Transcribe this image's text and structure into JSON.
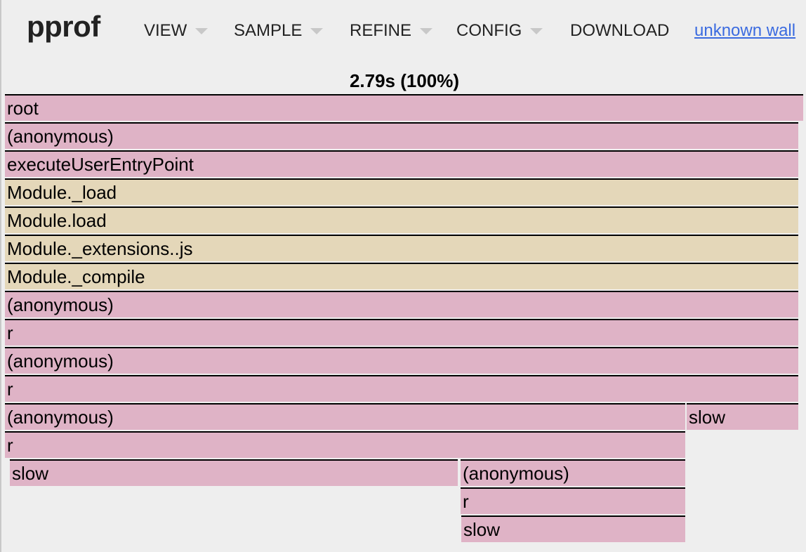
{
  "header": {
    "logo": "pprof",
    "menus": [
      {
        "label": "VIEW",
        "dropdown": true
      },
      {
        "label": "SAMPLE",
        "dropdown": true
      },
      {
        "label": "REFINE",
        "dropdown": true
      },
      {
        "label": "CONFIG",
        "dropdown": true
      },
      {
        "label": "DOWNLOAD",
        "dropdown": false
      }
    ],
    "profile_link": "unknown wall"
  },
  "flamegraph": {
    "total": "2.79s (100%)",
    "colors": {
      "pink": "#dfb3c6",
      "tan": "#e4d7b9"
    },
    "frames": [
      {
        "name": "root",
        "color": "pink"
      },
      {
        "name": "(anonymous)",
        "color": "pink"
      },
      {
        "name": "executeUserEntryPoint",
        "color": "pink"
      },
      {
        "name": "Module._load",
        "color": "tan"
      },
      {
        "name": "Module.load",
        "color": "tan"
      },
      {
        "name": "Module._extensions..js",
        "color": "tan"
      },
      {
        "name": "Module._compile",
        "color": "tan"
      },
      {
        "name": "(anonymous)",
        "color": "pink"
      },
      {
        "name": "r",
        "color": "pink"
      },
      {
        "name": "(anonymous)",
        "color": "pink"
      },
      {
        "name": "r",
        "color": "pink"
      },
      {
        "name": "(anonymous)",
        "color": "pink"
      },
      {
        "name": "slow",
        "color": "pink"
      },
      {
        "name": "r",
        "color": "pink"
      },
      {
        "name": "slow",
        "color": "pink"
      },
      {
        "name": "(anonymous)",
        "color": "pink"
      },
      {
        "name": "r",
        "color": "pink"
      },
      {
        "name": "slow",
        "color": "pink"
      }
    ]
  }
}
